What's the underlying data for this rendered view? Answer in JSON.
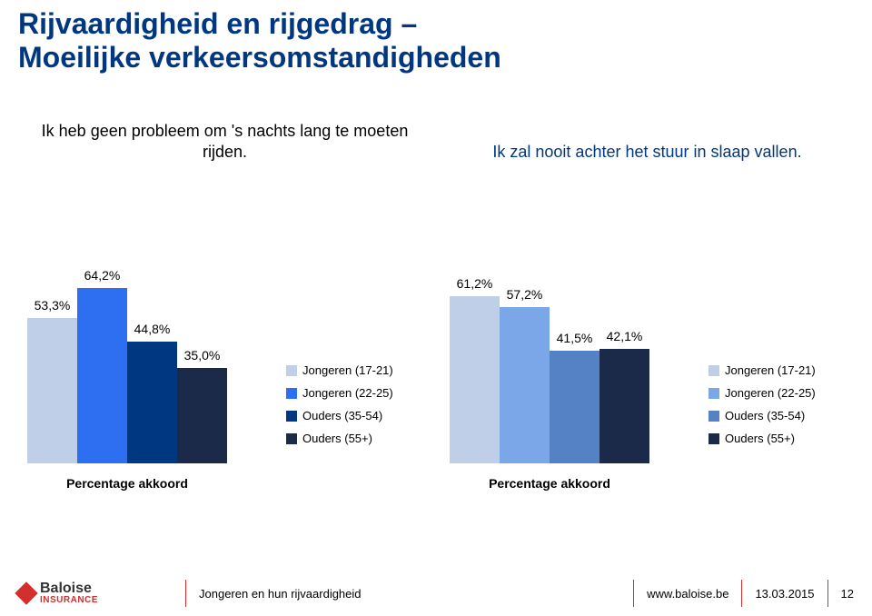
{
  "title": {
    "line1": "Rijvaardigheid en rijgedrag –",
    "line2": "Moeilijke verkeersomstandigheden",
    "color": "#003781"
  },
  "chart1": {
    "type": "bar",
    "subtitle_color": "#000000",
    "subtitle": "Ik heb geen probleem om 's nachts lang te moeten rijden.",
    "x_axis_label": "Percentage akkoord",
    "max_pct": 100,
    "label_fontsize": 14,
    "subtitle_fontsize": 18,
    "bars": [
      {
        "label": "53,3%",
        "value": 53.3,
        "color": "#bfcfe8"
      },
      {
        "label": "64,2%",
        "value": 64.2,
        "color": "#2e6ff2"
      },
      {
        "label": "44,8%",
        "value": 44.8,
        "color": "#003781"
      },
      {
        "label": "35,0%",
        "value": 35.0,
        "color": "#1c2a4a"
      }
    ],
    "legend": [
      {
        "label": "Jongeren (17-21)",
        "color": "#bfcfe8"
      },
      {
        "label": "Jongeren (22-25)",
        "color": "#2e6ff2"
      },
      {
        "label": "Ouders (35-54)",
        "color": "#003781"
      },
      {
        "label": "Ouders (55+)",
        "color": "#1c2a4a"
      }
    ]
  },
  "chart2": {
    "type": "bar",
    "subtitle_color": "#003781",
    "subtitle": "Ik zal nooit achter het stuur in slaap vallen.",
    "x_axis_label": "Percentage akkoord",
    "max_pct": 100,
    "label_fontsize": 14,
    "subtitle_fontsize": 18,
    "bars": [
      {
        "label": "61,2%",
        "value": 61.2,
        "color": "#bfcfe8"
      },
      {
        "label": "57,2%",
        "value": 57.2,
        "color": "#7ba7e8"
      },
      {
        "label": "41,5%",
        "value": 41.5,
        "color": "#5582c4"
      },
      {
        "label": "42,1%",
        "value": 42.1,
        "color": "#1c2a4a"
      }
    ],
    "legend": [
      {
        "label": "Jongeren (17-21)",
        "color": "#bfcfe8"
      },
      {
        "label": "Jongeren (22-25)",
        "color": "#7ba7e8"
      },
      {
        "label": "Ouders (35-54)",
        "color": "#5582c4"
      },
      {
        "label": "Ouders (55+)",
        "color": "#1c2a4a"
      }
    ]
  },
  "footer": {
    "brand": "Baloise",
    "brand_sub": "INSURANCE",
    "doc_title": "Jongeren en hun rijvaardigheid",
    "url": "www.baloise.be",
    "date": "13.03.2015",
    "page": "12",
    "sep_color": "#d32f2f",
    "brand_color": "#333333",
    "text_color": "#000000"
  }
}
